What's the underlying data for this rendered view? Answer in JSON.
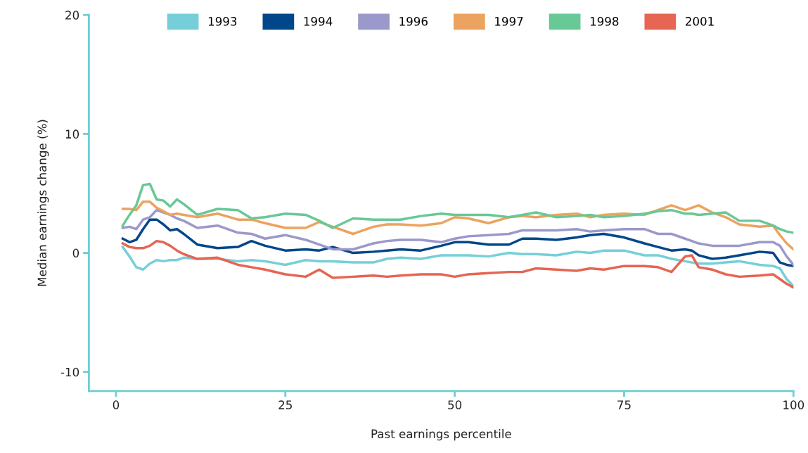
{
  "chart_data": {
    "type": "line",
    "xlabel": "Past earnings percentile",
    "ylabel": "Median earnings change (%)",
    "x": [
      1,
      2,
      3,
      4,
      5,
      6,
      7,
      8,
      9,
      10,
      12,
      15,
      18,
      20,
      22,
      25,
      28,
      30,
      32,
      35,
      38,
      40,
      42,
      45,
      48,
      50,
      52,
      55,
      58,
      60,
      62,
      65,
      68,
      70,
      72,
      75,
      78,
      80,
      82,
      84,
      85,
      86,
      88,
      90,
      92,
      95,
      97,
      98,
      99,
      100
    ],
    "series": [
      {
        "name": "1993",
        "color": "#76cfd8",
        "values": [
          0.5,
          -0.3,
          -1.2,
          -1.4,
          -0.9,
          -0.6,
          -0.7,
          -0.6,
          -0.6,
          -0.4,
          -0.5,
          -0.5,
          -0.7,
          -0.6,
          -0.7,
          -1.0,
          -0.6,
          -0.7,
          -0.7,
          -0.8,
          -0.8,
          -0.5,
          -0.4,
          -0.5,
          -0.2,
          -0.2,
          -0.2,
          -0.3,
          0.0,
          -0.1,
          -0.1,
          -0.2,
          0.1,
          0.0,
          0.2,
          0.2,
          -0.2,
          -0.2,
          -0.5,
          -0.7,
          -0.8,
          -0.9,
          -0.9,
          -0.8,
          -0.7,
          -1.0,
          -1.1,
          -1.3,
          -2.2,
          -2.8
        ]
      },
      {
        "name": "1994",
        "color": "#00468b",
        "values": [
          1.2,
          0.9,
          1.1,
          2.0,
          2.8,
          2.8,
          2.4,
          1.9,
          2.0,
          1.6,
          0.7,
          0.4,
          0.5,
          1.0,
          0.6,
          0.2,
          0.3,
          0.2,
          0.5,
          0.0,
          0.1,
          0.2,
          0.3,
          0.2,
          0.6,
          0.9,
          0.9,
          0.7,
          0.7,
          1.2,
          1.2,
          1.1,
          1.3,
          1.5,
          1.6,
          1.3,
          0.8,
          0.5,
          0.2,
          0.3,
          0.2,
          -0.2,
          -0.5,
          -0.4,
          -0.2,
          0.1,
          0.0,
          -0.8,
          -1.0,
          -1.1
        ]
      },
      {
        "name": "1996",
        "color": "#9b98cb",
        "values": [
          2.1,
          2.2,
          2.0,
          2.8,
          3.0,
          3.6,
          3.4,
          3.2,
          2.9,
          2.7,
          2.1,
          2.3,
          1.7,
          1.6,
          1.2,
          1.5,
          1.1,
          0.7,
          0.3,
          0.3,
          0.8,
          1.0,
          1.1,
          1.1,
          0.9,
          1.2,
          1.4,
          1.5,
          1.6,
          1.9,
          1.9,
          1.9,
          2.0,
          1.8,
          1.9,
          2.0,
          2.0,
          1.6,
          1.6,
          1.2,
          1.0,
          0.8,
          0.6,
          0.6,
          0.6,
          0.9,
          0.9,
          0.6,
          -0.3,
          -1.0
        ]
      },
      {
        "name": "1997",
        "color": "#eba35f",
        "values": [
          3.7,
          3.7,
          3.6,
          4.3,
          4.3,
          3.8,
          3.5,
          3.2,
          3.3,
          3.2,
          3.0,
          3.3,
          2.8,
          2.8,
          2.5,
          2.1,
          2.1,
          2.6,
          2.2,
          1.6,
          2.2,
          2.4,
          2.4,
          2.3,
          2.5,
          3.0,
          2.9,
          2.5,
          3.0,
          3.1,
          3.0,
          3.2,
          3.3,
          3.0,
          3.2,
          3.3,
          3.2,
          3.6,
          4.0,
          3.6,
          3.8,
          4.0,
          3.4,
          3.0,
          2.4,
          2.2,
          2.3,
          1.5,
          0.8,
          0.3
        ]
      },
      {
        "name": "1998",
        "color": "#68c896",
        "values": [
          2.3,
          3.2,
          4.0,
          5.7,
          5.8,
          4.5,
          4.4,
          3.9,
          4.5,
          4.1,
          3.2,
          3.7,
          3.6,
          2.9,
          3.0,
          3.3,
          3.2,
          2.7,
          2.1,
          2.9,
          2.8,
          2.8,
          2.8,
          3.1,
          3.3,
          3.2,
          3.2,
          3.2,
          3.0,
          3.2,
          3.4,
          3.0,
          3.1,
          3.2,
          3.0,
          3.1,
          3.3,
          3.5,
          3.6,
          3.3,
          3.3,
          3.2,
          3.3,
          3.4,
          2.7,
          2.7,
          2.3,
          2.0,
          1.8,
          1.7
        ]
      },
      {
        "name": "2001",
        "color": "#e66553",
        "values": [
          0.8,
          0.5,
          0.4,
          0.4,
          0.6,
          1.0,
          0.9,
          0.6,
          0.2,
          -0.1,
          -0.5,
          -0.4,
          -1.0,
          -1.2,
          -1.4,
          -1.8,
          -2.0,
          -1.4,
          -2.1,
          -2.0,
          -1.9,
          -2.0,
          -1.9,
          -1.8,
          -1.8,
          -2.0,
          -1.8,
          -1.7,
          -1.6,
          -1.6,
          -1.3,
          -1.4,
          -1.5,
          -1.3,
          -1.4,
          -1.1,
          -1.1,
          -1.2,
          -1.6,
          -0.3,
          -0.2,
          -1.2,
          -1.4,
          -1.8,
          -2.0,
          -1.9,
          -1.8,
          -2.2,
          -2.6,
          -2.9
        ]
      }
    ],
    "xlim": [
      -4,
      100
    ],
    "ylim": [
      -11.6,
      20
    ],
    "xticks": [
      0,
      25,
      50,
      75,
      100
    ],
    "yticks": [
      -10,
      0,
      10,
      20
    ],
    "grid": false,
    "legend": "top",
    "marker": "none",
    "line_style": "solid"
  }
}
